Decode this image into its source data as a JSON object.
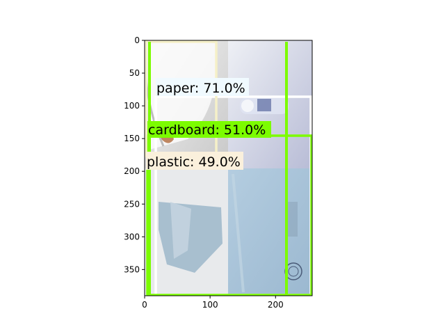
{
  "axes": {
    "x_ticks": [
      0,
      100,
      200
    ],
    "y_ticks": [
      0,
      50,
      100,
      150,
      200,
      250,
      300,
      350
    ],
    "xlim": [
      0,
      256
    ],
    "ylim": [
      0,
      390
    ],
    "y_inverted": true
  },
  "detections": [
    {
      "label": "paper: 71.0%",
      "color": "#ffffff"
    },
    {
      "label": "cardboard: 51.0%",
      "color": "#7cfc00"
    },
    {
      "label": "plastic: 49.0%",
      "color": "#faf0dc"
    }
  ],
  "extra_boxes": [
    {
      "color": "#f5f0c8"
    },
    {
      "color": "#7cfc00"
    },
    {
      "color": "#7cfc00"
    }
  ],
  "image_panels": [
    {
      "name": "plastic-bottle-photo",
      "color": "#e6e6e6"
    },
    {
      "name": "glass-bottle-photo",
      "color": "#c9cfe6"
    },
    {
      "name": "paper-torn-photo",
      "color": "#dfe3e7"
    },
    {
      "name": "cardboard-sheet-photo",
      "color": "#a9c5dc"
    }
  ]
}
